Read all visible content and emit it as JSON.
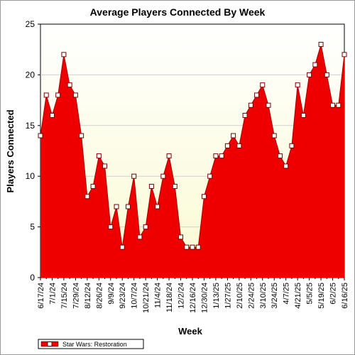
{
  "colors": {
    "plot_background_top": "#ffffff",
    "plot_background_bottom": "#fafad2",
    "series_fill": "#ee0000",
    "series_edge": "#aa0000",
    "marker_fill": "#ffffff",
    "marker_stroke": "#770000",
    "axis": "#000000",
    "grid": "#d0d0d0"
  },
  "chart_data": {
    "type": "area",
    "title": "Average Players Connected By Week",
    "xlabel": "Week",
    "ylabel": "Players Connected",
    "ylim": [
      0,
      25
    ],
    "yticks": [
      0,
      5,
      10,
      15,
      20,
      25
    ],
    "grid": true,
    "legend_position": "bottom-left",
    "markers": "square",
    "x": [
      "6/17/24",
      "6/24/24",
      "7/1/24",
      "7/8/24",
      "7/15/24",
      "7/22/24",
      "7/29/24",
      "8/5/24",
      "8/12/24",
      "8/19/24",
      "8/26/24",
      "9/2/24",
      "9/9/24",
      "9/16/24",
      "9/23/24",
      "9/30/24",
      "10/7/24",
      "10/14/24",
      "10/21/24",
      "10/28/24",
      "11/4/24",
      "11/11/24",
      "11/18/24",
      "11/25/24",
      "12/2/24",
      "12/9/24",
      "12/16/24",
      "12/23/24",
      "12/30/24",
      "1/6/25",
      "1/13/25",
      "1/20/25",
      "1/27/25",
      "2/3/25",
      "2/10/25",
      "2/17/25",
      "2/24/25",
      "3/3/25",
      "3/10/25",
      "3/17/25",
      "3/24/25",
      "3/31/25",
      "4/7/25",
      "4/14/25",
      "4/21/25",
      "4/28/25",
      "5/5/25",
      "5/12/25",
      "5/19/25",
      "5/26/25",
      "6/2/25",
      "6/9/25",
      "6/16/25"
    ],
    "tick_labels": [
      "6/17/24",
      "7/1/24",
      "7/15/24",
      "7/29/24",
      "8/12/24",
      "8/26/24",
      "9/9/24",
      "9/23/24",
      "10/7/24",
      "10/21/24",
      "11/4/24",
      "11/18/24",
      "12/2/24",
      "12/16/24",
      "12/30/24",
      "1/13/25",
      "1/27/25",
      "2/10/25",
      "2/24/25",
      "3/10/25",
      "3/24/25",
      "4/7/25",
      "4/21/25",
      "5/5/25",
      "5/19/25",
      "6/2/25",
      "6/16/25"
    ],
    "series": [
      {
        "name": "Star Wars: Restoration",
        "values": [
          14,
          18,
          16,
          18,
          22,
          19,
          18,
          14,
          8,
          9,
          12,
          11,
          5,
          7,
          3,
          7,
          10,
          4,
          5,
          9,
          7,
          10,
          12,
          9,
          4,
          3,
          3,
          3,
          8,
          10,
          12,
          12,
          13,
          14,
          13,
          16,
          17,
          18,
          19,
          17,
          14,
          12,
          11,
          13,
          19,
          16,
          20,
          21,
          23,
          20,
          17,
          17,
          22
        ]
      }
    ]
  }
}
